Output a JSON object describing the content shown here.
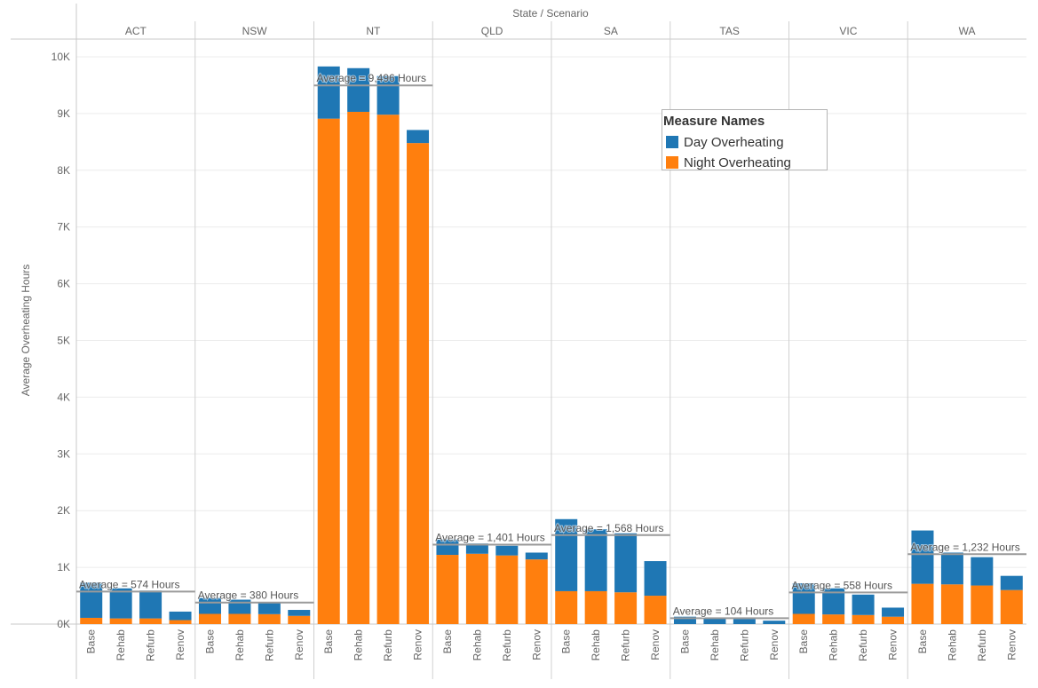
{
  "chart_data": {
    "type": "bar",
    "stacked": true,
    "title": "State / Scenario",
    "xlabel": "",
    "ylabel": "Average Overheating Hours",
    "ylim": [
      0,
      10000
    ],
    "yticks": [
      0,
      1000,
      2000,
      3000,
      4000,
      5000,
      6000,
      7000,
      8000,
      9000,
      10000
    ],
    "ytick_labels": [
      "0K",
      "1K",
      "2K",
      "3K",
      "4K",
      "5K",
      "6K",
      "7K",
      "8K",
      "9K",
      "10K"
    ],
    "scenarios": [
      "Base",
      "Rehab",
      "Refurb",
      "Renov"
    ],
    "legend": {
      "title": "Measure Names",
      "entries": [
        {
          "name": "Day Overheating",
          "color": "#1f77b4"
        },
        {
          "name": "Night Overheating",
          "color": "#ff7f0e"
        }
      ]
    },
    "groups": [
      {
        "state": "ACT",
        "avg_label": "Average = 574 Hours",
        "avg": 574,
        "night": [
          110,
          100,
          100,
          70
        ],
        "day": [
          620,
          530,
          490,
          150
        ]
      },
      {
        "state": "NSW",
        "avg_label": "Average = 380 Hours",
        "avg": 380,
        "night": [
          180,
          180,
          175,
          145
        ],
        "day": [
          280,
          250,
          210,
          105
        ]
      },
      {
        "state": "NT",
        "avg_label": "Average = 9,496 Hours",
        "avg": 9496,
        "night": [
          8910,
          9030,
          8980,
          8480
        ],
        "day": [
          920,
          770,
          680,
          230
        ]
      },
      {
        "state": "QLD",
        "avg_label": "Average = 1,401 Hours",
        "avg": 1401,
        "night": [
          1220,
          1240,
          1210,
          1140
        ],
        "day": [
          270,
          180,
          170,
          120
        ]
      },
      {
        "state": "SA",
        "avg_label": "Average = 1,568 Hours",
        "avg": 1568,
        "night": [
          580,
          580,
          560,
          500
        ],
        "day": [
          1270,
          1090,
          1040,
          610
        ]
      },
      {
        "state": "TAS",
        "avg_label": "Average = 104 Hours",
        "avg": 104,
        "night": [
          0,
          0,
          0,
          0
        ],
        "day": [
          130,
          100,
          90,
          60
        ]
      },
      {
        "state": "VIC",
        "avg_label": "Average = 558 Hours",
        "avg": 558,
        "night": [
          180,
          170,
          160,
          130
        ],
        "day": [
          540,
          460,
          360,
          160
        ]
      },
      {
        "state": "WA",
        "avg_label": "Average = 1,232 Hours",
        "avg": 1232,
        "night": [
          710,
          700,
          680,
          600
        ],
        "day": [
          940,
          560,
          500,
          250
        ]
      }
    ]
  }
}
